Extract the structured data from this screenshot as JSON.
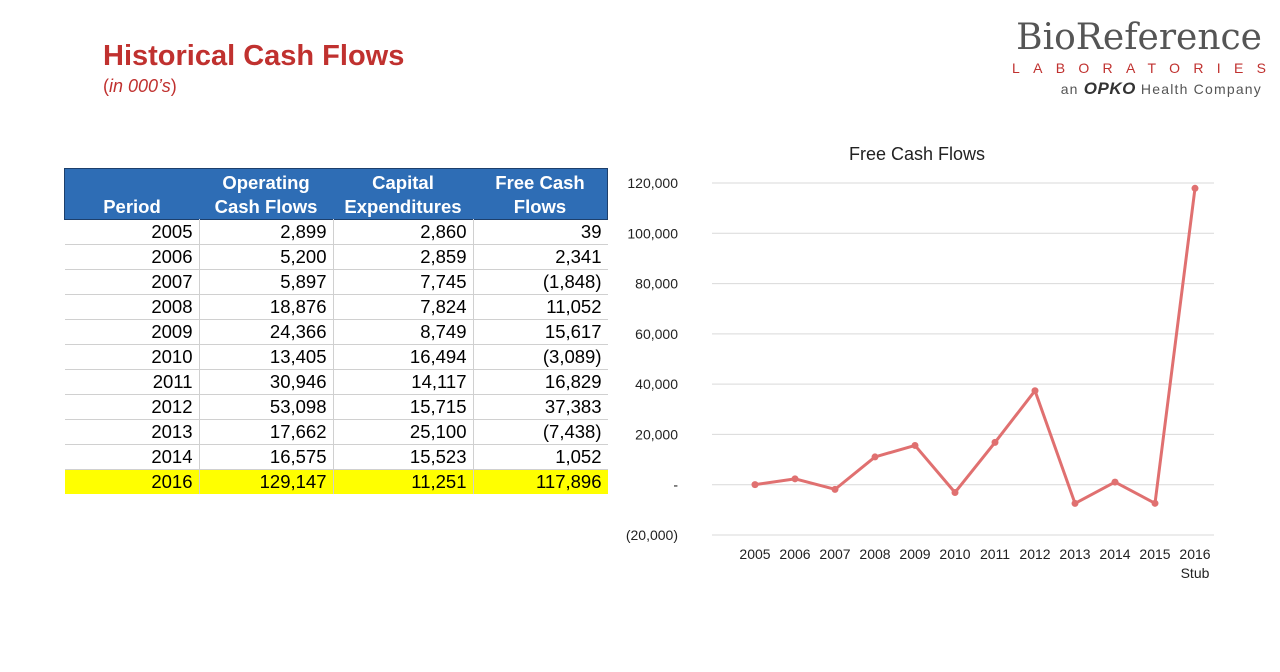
{
  "header": {
    "title": "Historical Cash Flows",
    "subtitle_open": "(",
    "subtitle_inner": "in 000’s",
    "subtitle_close": ")"
  },
  "logo": {
    "main": "BioReference",
    "sub": "LABORATORIES",
    "tag_prefix": "an",
    "tag_brand": "OPKO",
    "tag_suffix": "Health Company",
    "accent_color": "#c0312f"
  },
  "table": {
    "headers": [
      [
        "Period"
      ],
      [
        "Operating",
        "Cash Flows"
      ],
      [
        "Capital",
        "Expenditures"
      ],
      [
        "Free Cash",
        "Flows"
      ]
    ],
    "header_color": "#2e6db5",
    "highlight_color": "#ffff00",
    "rows": [
      [
        "2005",
        "2,899",
        "2,860",
        "39"
      ],
      [
        "2006",
        "5,200",
        "2,859",
        "2,341"
      ],
      [
        "2007",
        "5,897",
        "7,745",
        "(1,848)"
      ],
      [
        "2008",
        "18,876",
        "7,824",
        "11,052"
      ],
      [
        "2009",
        "24,366",
        "8,749",
        "15,617"
      ],
      [
        "2010",
        "13,405",
        "16,494",
        "(3,089)"
      ],
      [
        "2011",
        "30,946",
        "14,117",
        "16,829"
      ],
      [
        "2012",
        "53,098",
        "15,715",
        "37,383"
      ],
      [
        "2013",
        "17,662",
        "25,100",
        "(7,438)"
      ],
      [
        "2014",
        "16,575",
        "15,523",
        "1,052"
      ],
      [
        "2016",
        "129,147",
        "11,251",
        "117,896"
      ]
    ],
    "highlight_row_index": 10
  },
  "chart_data": {
    "type": "line",
    "title": "Free Cash Flows",
    "categories": [
      "2005",
      "2006",
      "2007",
      "2008",
      "2009",
      "2010",
      "2011",
      "2012",
      "2013",
      "2014",
      "2015",
      "2016"
    ],
    "category_sublabels": [
      "",
      "",
      "",
      "",
      "",
      "",
      "",
      "",
      "",
      "",
      "",
      "Stub"
    ],
    "series": [
      {
        "values": [
          39,
          2341,
          -1848,
          11052,
          15617,
          -3089,
          16829,
          37383,
          -7438,
          1052,
          -7400,
          117896
        ]
      }
    ],
    "ylim": [
      -20000,
      120000
    ],
    "yticks": [
      {
        "value": 120000,
        "label": "120,000"
      },
      {
        "value": 100000,
        "label": "100,000"
      },
      {
        "value": 80000,
        "label": "80,000"
      },
      {
        "value": 60000,
        "label": "60,000"
      },
      {
        "value": 40000,
        "label": "40,000"
      },
      {
        "value": 20000,
        "label": "20,000"
      },
      {
        "value": 0,
        "label": "-"
      },
      {
        "value": -20000,
        "label": "(20,000)"
      }
    ],
    "grid": true,
    "legend": "none",
    "line_color": "#e07070"
  }
}
